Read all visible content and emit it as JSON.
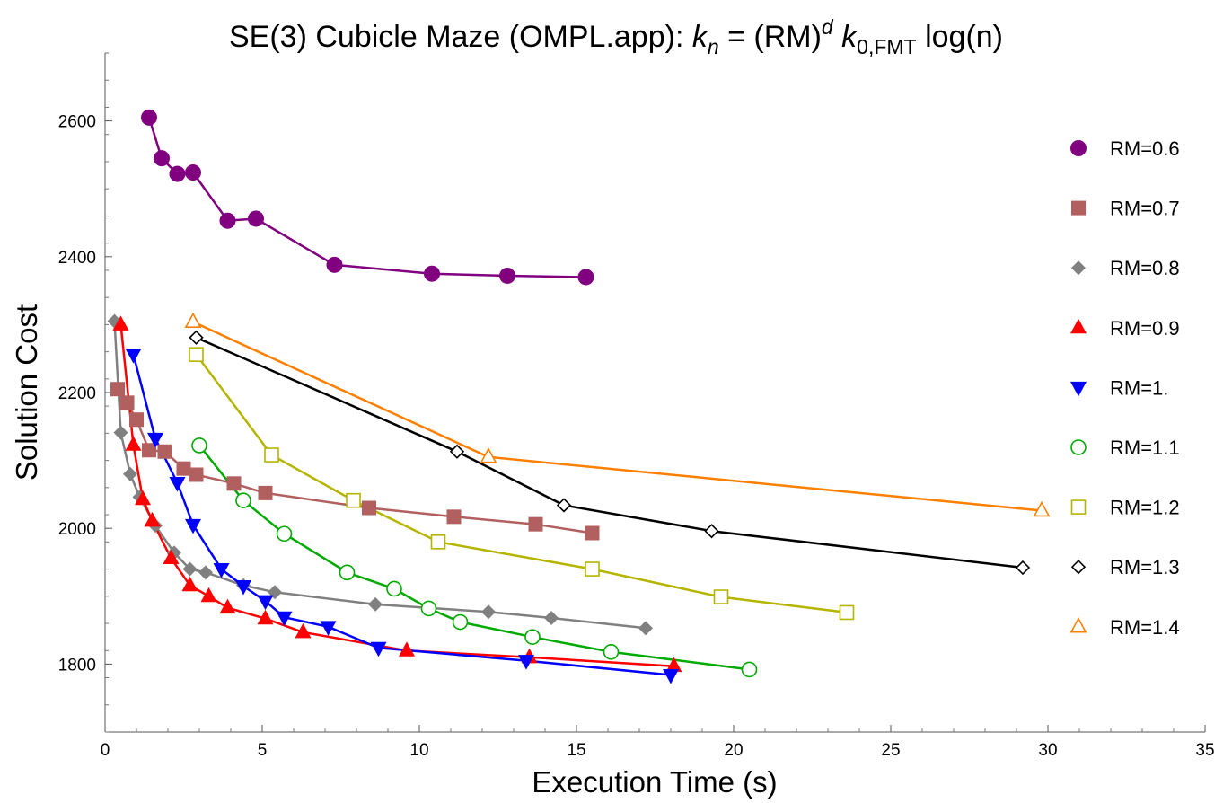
{
  "chart_data": {
    "type": "line",
    "title": "SE(3) Cubicle Maze (OMPL.app): k_n = (RM)^d k_0,FMT log(n)",
    "title_parts": {
      "prefix": "SE(3) Cubicle Maze (OMPL.app): ",
      "k": "k",
      "n_sub": "n",
      "equals": " = (RM)",
      "d_sup": "d",
      "k0": " k",
      "k0_sub": "0,FMT",
      "suffix": " log(n)"
    },
    "xlabel": "Execution Time (s)",
    "ylabel": "Solution Cost",
    "xlim": [
      0,
      35
    ],
    "ylim": [
      1700,
      2700
    ],
    "x_ticks": [
      0,
      5,
      10,
      15,
      20,
      25,
      30,
      35
    ],
    "x_tick_labels": [
      "0",
      "5",
      "10",
      "15",
      "20",
      "25",
      "30",
      "35"
    ],
    "y_ticks": [
      1800,
      2000,
      2200,
      2400,
      2600
    ],
    "y_tick_labels": [
      "1800",
      "2000",
      "2200",
      "2400",
      "2600"
    ],
    "grid": false,
    "legend_position": "right",
    "series": [
      {
        "name": "RM=0.6",
        "color": "#800080",
        "marker": "circle-filled",
        "x": [
          1.4,
          1.8,
          2.3,
          2.8,
          3.9,
          4.8,
          7.3,
          10.4,
          12.8,
          15.3
        ],
        "y": [
          2605,
          2545,
          2522,
          2524,
          2453,
          2456,
          2388,
          2375,
          2372,
          2370
        ]
      },
      {
        "name": "RM=0.7",
        "color": "#b25f5f",
        "marker": "square-filled",
        "x": [
          0.4,
          0.7,
          1.0,
          1.4,
          1.9,
          2.5,
          2.9,
          4.1,
          5.1,
          8.4,
          11.1,
          13.7,
          15.5
        ],
        "y": [
          2205,
          2185,
          2160,
          2115,
          2113,
          2088,
          2079,
          2066,
          2052,
          2030,
          2017,
          2006,
          1993
        ]
      },
      {
        "name": "RM=0.8",
        "color": "#808080",
        "marker": "diamond-filled",
        "x": [
          0.3,
          0.5,
          0.8,
          1.1,
          1.6,
          2.2,
          2.7,
          3.2,
          4.4,
          5.4,
          8.6,
          12.2,
          14.2,
          17.2
        ],
        "y": [
          2305,
          2141,
          2080,
          2046,
          2004,
          1964,
          1940,
          1935,
          1916,
          1906,
          1888,
          1877,
          1868,
          1853
        ]
      },
      {
        "name": "RM=0.9",
        "color": "#ff0000",
        "marker": "triangle-up-filled",
        "x": [
          0.5,
          0.9,
          1.2,
          1.5,
          2.1,
          2.7,
          3.3,
          3.9,
          5.1,
          6.3,
          9.6,
          13.5,
          18.1
        ],
        "y": [
          2300,
          2123,
          2043,
          2011,
          1956,
          1916,
          1900,
          1883,
          1867,
          1847,
          1820,
          1810,
          1797
        ]
      },
      {
        "name": "RM=1.",
        "color": "#0000ff",
        "marker": "triangle-down-filled",
        "x": [
          0.9,
          1.6,
          2.3,
          2.8,
          3.7,
          4.4,
          5.1,
          5.7,
          7.1,
          8.7,
          13.4,
          18.0
        ],
        "y": [
          2256,
          2132,
          2067,
          2005,
          1940,
          1915,
          1893,
          1869,
          1855,
          1824,
          1805,
          1784
        ]
      },
      {
        "name": "RM=1.1",
        "color": "#00aa00",
        "marker": "circle-open",
        "x": [
          3.0,
          4.4,
          5.7,
          7.7,
          9.2,
          10.3,
          11.3,
          13.6,
          16.1,
          20.5
        ],
        "y": [
          2122,
          2041,
          1992,
          1935,
          1911,
          1882,
          1862,
          1840,
          1818,
          1792
        ]
      },
      {
        "name": "RM=1.2",
        "color": "#b5b500",
        "marker": "square-open",
        "x": [
          2.9,
          5.3,
          7.9,
          10.6,
          15.5,
          19.6,
          23.6
        ],
        "y": [
          2256,
          2108,
          2041,
          1980,
          1940,
          1899,
          1876
        ]
      },
      {
        "name": "RM=1.3",
        "color": "#000000",
        "marker": "diamond-open",
        "x": [
          2.9,
          11.2,
          14.6,
          19.3,
          29.2
        ],
        "y": [
          2281,
          2113,
          2034,
          1996,
          1942
        ]
      },
      {
        "name": "RM=1.4",
        "color": "#ff8000",
        "marker": "triangle-up-open",
        "x": [
          2.8,
          12.2,
          29.8
        ],
        "y": [
          2304,
          2105,
          2026
        ]
      }
    ]
  }
}
